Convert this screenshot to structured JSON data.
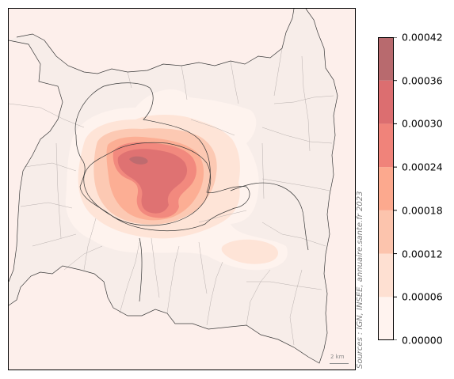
{
  "map": {
    "source_note": "Sources : IGN, INSEE, annuaire.sante.fr 2023",
    "scale_label": "2 km",
    "colors": {
      "background": "#fdefeb",
      "commune_fill": "#f7ede9",
      "commune_border": "#b8b0ae",
      "dept_border": "#3a3a3a"
    }
  },
  "legend": {
    "ticks": [
      "0.00000",
      "0.00006",
      "0.00012",
      "0.00018",
      "0.00024",
      "0.00030",
      "0.00036",
      "0.00042"
    ],
    "bands": [
      {
        "from": 0.0,
        "to": 6e-05,
        "color": "#fff3ef"
      },
      {
        "from": 6e-05,
        "to": 0.00012,
        "color": "#fee0d2"
      },
      {
        "from": 0.00012,
        "to": 0.00018,
        "color": "#fcc4ad"
      },
      {
        "from": 0.00018,
        "to": 0.00024,
        "color": "#fca98e"
      },
      {
        "from": 0.00024,
        "to": 0.0003,
        "color": "#f0837a"
      },
      {
        "from": 0.0003,
        "to": 0.00036,
        "color": "#dc6e70"
      },
      {
        "from": 0.00036,
        "to": 0.00042,
        "color": "#b86a6e"
      }
    ]
  }
}
